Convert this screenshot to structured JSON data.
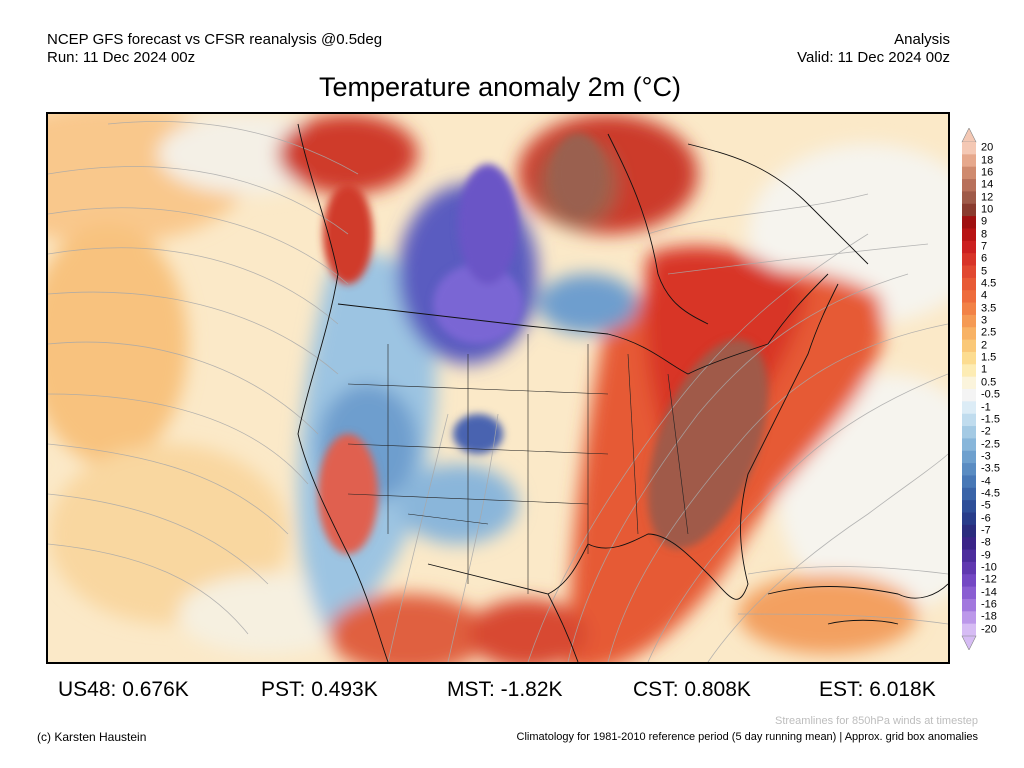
{
  "header": {
    "line1_left": "NCEP GFS forecast vs CFSR reanalysis @0.5deg",
    "line2_left": "Run: 11 Dec 2024 00z",
    "line1_right": "Analysis",
    "line2_right": "Valid: 11 Dec 2024 00z"
  },
  "title": "Temperature anomaly 2m (°C)",
  "colorbar": {
    "labels": [
      "20",
      "18",
      "16",
      "14",
      "12",
      "10",
      "9",
      "8",
      "7",
      "6",
      "5",
      "4.5",
      "4",
      "3.5",
      "3",
      "2.5",
      "2",
      "1.5",
      "1",
      "0.5",
      "-0.5",
      "-1",
      "-1.5",
      "-2",
      "-2.5",
      "-3",
      "-3.5",
      "-4",
      "-4.5",
      "-5",
      "-6",
      "-7",
      "-8",
      "-9",
      "-10",
      "-12",
      "-14",
      "-16",
      "-18",
      "-20"
    ],
    "colors": [
      "#f4c8b4",
      "#e6a88c",
      "#cf8a6e",
      "#b8705a",
      "#9f5a48",
      "#8a3b2e",
      "#a01010",
      "#b81414",
      "#cc2020",
      "#d83428",
      "#e14830",
      "#e85a35",
      "#ee6c3c",
      "#f28246",
      "#f59a54",
      "#f8b265",
      "#fac878",
      "#fcdc90",
      "#fdecb4",
      "#fbf4dc",
      "#f4f4f4",
      "#dcecf6",
      "#c0dcee",
      "#a4cae4",
      "#88b6da",
      "#6ea0ce",
      "#5a8cc2",
      "#4878b6",
      "#3a64a8",
      "#2e4e98",
      "#283c8a",
      "#2a2c7e",
      "#3a2488",
      "#4c2c9c",
      "#6038b0",
      "#7448c4",
      "#8a5ed2",
      "#a278de",
      "#bc98ea",
      "#d6bcf4"
    ],
    "top_arrow_color": "#f4c8b4",
    "bottom_arrow_color": "#d6bcf4"
  },
  "stats": [
    {
      "region": "US48",
      "value": "0.676K"
    },
    {
      "region": "PST",
      "value": "0.493K"
    },
    {
      "region": "MST",
      "value": "-1.82K"
    },
    {
      "region": "CST",
      "value": "0.808K"
    },
    {
      "region": "EST",
      "value": "6.018K"
    }
  ],
  "footer": {
    "streamlines_note": "Streamlines for 850hPa winds at timestep",
    "copyright": "(c) Karsten Haustein",
    "climatology": "Climatology for 1981-2010 reference period (5 day running mean) | Approx. grid box anomalies"
  }
}
